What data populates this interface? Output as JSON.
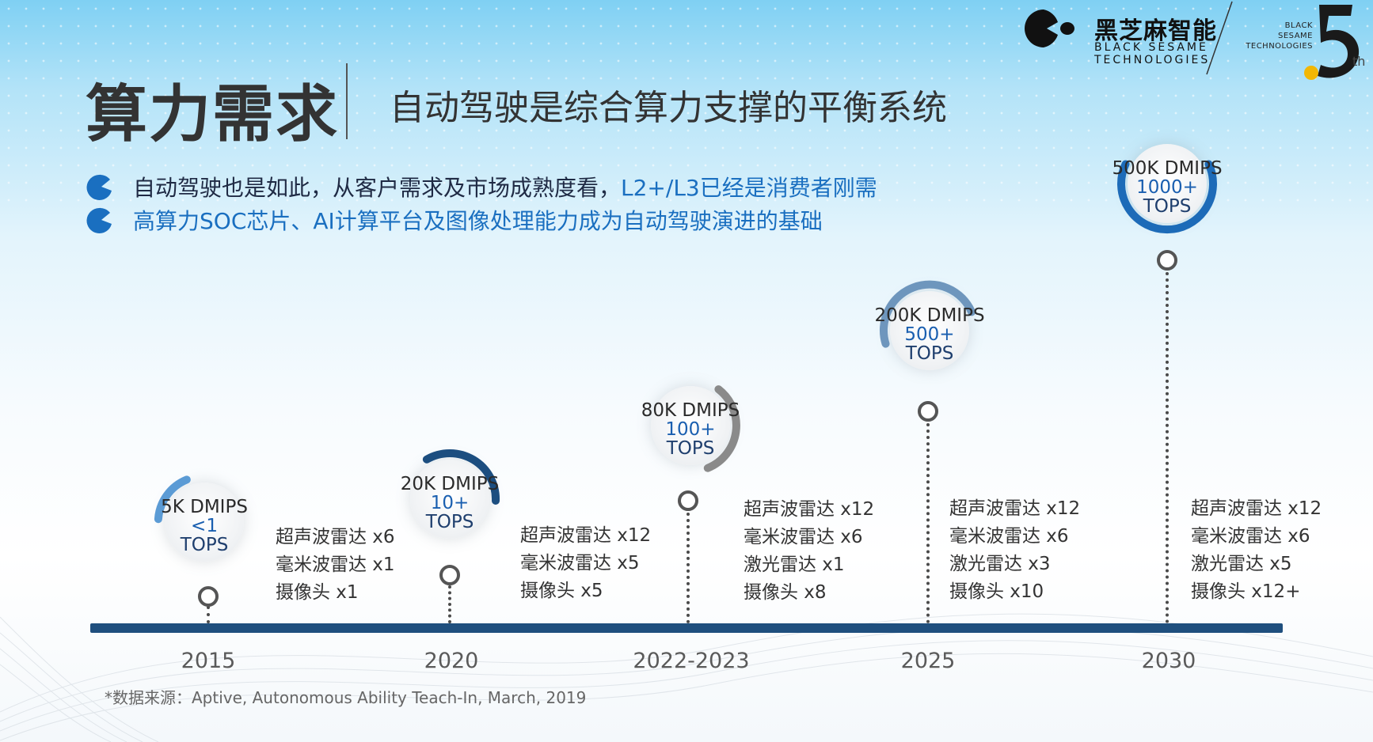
{
  "header": {
    "title": "算力需求",
    "subtitle": "自动驾驶是综合算力支撑的平衡系统"
  },
  "logo": {
    "name_cn": "黑芝麻智能",
    "name_en_line1": "BLACK SESAME",
    "name_en_line2": "TECHNOLOGIES",
    "anniversary_line1": "BLACK",
    "anniversary_line2": "SESAME",
    "anniversary_line3": "TECHNOLOGIES",
    "anniversary_suffix": "th"
  },
  "bullets": [
    {
      "text": "自动驾驶也是如此，从客户需求及市场成熟度看，",
      "highlight": "L2+/L3已经是消费者刚需"
    },
    {
      "text": "高算力SOC芯片、AI计算平台及图像处理能力成为自动驾驶演进的基础",
      "highlight": ""
    }
  ],
  "timeline": [
    {
      "year": "2015",
      "dmips": "5K DMIPS",
      "tops_value": "<1",
      "tops_unit": "TOPS",
      "sensors": [
        "超声波雷达 x6",
        "毫米波雷达 x1",
        "摄像头 x1"
      ]
    },
    {
      "year": "2020",
      "dmips": "20K DMIPS",
      "tops_value": "10+",
      "tops_unit": "TOPS",
      "sensors": [
        "超声波雷达 x12",
        "毫米波雷达 x5",
        "摄像头 x5"
      ]
    },
    {
      "year": "2022-2023",
      "dmips": "80K DMIPS",
      "tops_value": "100+",
      "tops_unit": "TOPS",
      "sensors": [
        "超声波雷达 x12",
        "毫米波雷达 x6",
        "激光雷达 x1",
        "摄像头 x8"
      ]
    },
    {
      "year": "2025",
      "dmips": "200K DMIPS",
      "tops_value": "500+",
      "tops_unit": "TOPS",
      "sensors": [
        "超声波雷达 x12",
        "毫米波雷达 x6",
        "激光雷达 x3",
        "摄像头 x10"
      ]
    },
    {
      "year": "2030",
      "dmips": "500K DMIPS",
      "tops_value": "1000+",
      "tops_unit": "TOPS",
      "sensors": [
        "超声波雷达 x12",
        "毫米波雷达 x6",
        "激光雷达 x5",
        "摄像头 x12+"
      ]
    }
  ],
  "source": "*数据来源：Aptive, Autonomous Ability Teach-In, March, 2019",
  "colors": {
    "accent_blue": "#1a6fc0",
    "axis_navy": "#1f4f7e",
    "arc_light_blue": "#5b9bd5",
    "arc_navy": "#1c4e80",
    "arc_gray": "#8a8a8a",
    "arc_steel": "#6e96bd",
    "arc_blue": "#1d6bb8"
  },
  "icons": [
    "logo-mark-icon",
    "bullet-pacman-icon",
    "anniversary-five-icon"
  ]
}
